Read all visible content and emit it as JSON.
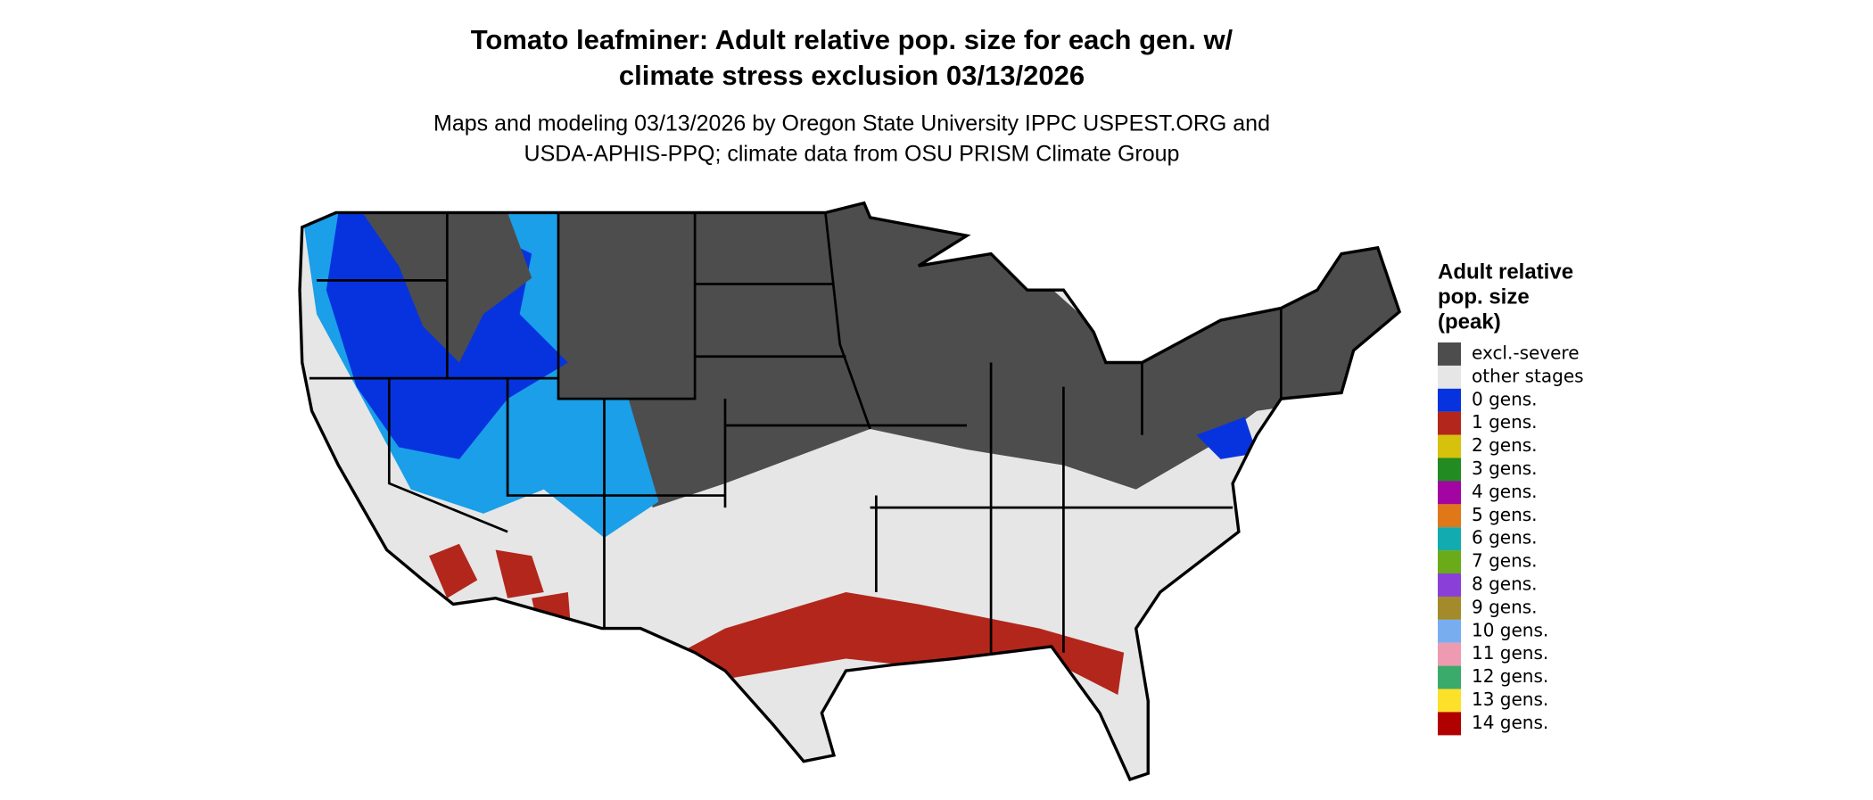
{
  "header": {
    "title": [
      "Tomato leafminer: Adult relative pop. size for each gen. w/",
      "climate stress exclusion 03/13/2026"
    ],
    "subtitle": [
      "Maps and modeling 03/13/2026 by Oregon State University IPPC USPEST.ORG and",
      "USDA-APHIS-PPQ; climate data from OSU PRISM Climate Group"
    ]
  },
  "legend": {
    "title": [
      "Adult relative",
      "pop. size",
      "(peak)"
    ],
    "items": [
      {
        "label": "excl.-severe",
        "color": "#4d4d4d"
      },
      {
        "label": "other stages",
        "color": "#e6e6e6"
      },
      {
        "label": "0 gens.",
        "color": "#0733de"
      },
      {
        "label": "1 gens.",
        "color": "#b3261b"
      },
      {
        "label": "2 gens.",
        "color": "#d6c10c"
      },
      {
        "label": "3 gens.",
        "color": "#228b22"
      },
      {
        "label": "4 gens.",
        "color": "#a305a3"
      },
      {
        "label": "5 gens.",
        "color": "#e0781a"
      },
      {
        "label": "6 gens.",
        "color": "#12abb0"
      },
      {
        "label": "7 gens.",
        "color": "#6aab1a"
      },
      {
        "label": "8 gens.",
        "color": "#8a40d8"
      },
      {
        "label": "9 gens.",
        "color": "#a38a2a"
      },
      {
        "label": "10 gens.",
        "color": "#78aef0"
      },
      {
        "label": "11 gens.",
        "color": "#ee9ab0"
      },
      {
        "label": "12 gens.",
        "color": "#3aab6a"
      },
      {
        "label": "13 gens.",
        "color": "#fde02a"
      },
      {
        "label": "14 gens.",
        "color": "#b00000"
      }
    ]
  }
}
